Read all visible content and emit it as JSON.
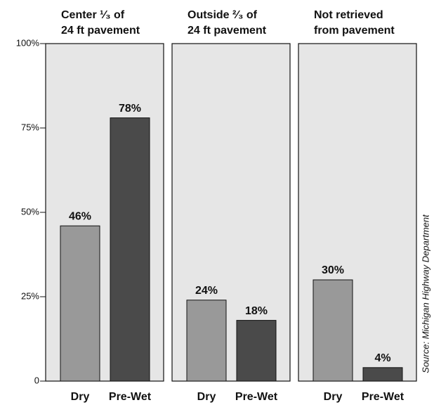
{
  "chart_data": {
    "type": "bar",
    "ylim": [
      0,
      100
    ],
    "yticks": [
      0,
      {
        "value": 25,
        "label": "25%"
      },
      {
        "value": 50,
        "label": "50%"
      },
      {
        "value": 75,
        "label": "75%"
      },
      {
        "value": 100,
        "label": "100%"
      }
    ],
    "colors": [
      "#999999",
      "#4a4a4a"
    ],
    "source": "Source: Michigan Highway Department",
    "panels": [
      {
        "title": [
          "Center ¹⁄₃ of",
          "24 ft pavement"
        ],
        "categories": [
          "Dry",
          "Pre-Wet"
        ],
        "values": [
          46,
          78
        ],
        "value_labels": [
          "46%",
          "78%"
        ]
      },
      {
        "title": [
          "Outside ²⁄₃ of",
          "24 ft pavement"
        ],
        "categories": [
          "Dry",
          "Pre-Wet"
        ],
        "values": [
          24,
          18
        ],
        "value_labels": [
          "24%",
          "18%"
        ]
      },
      {
        "title": [
          "Not retrieved",
          "from pavement"
        ],
        "categories": [
          "Dry",
          "Pre-Wet"
        ],
        "values": [
          30,
          4
        ],
        "value_labels": [
          "30%",
          "4%"
        ]
      }
    ]
  }
}
